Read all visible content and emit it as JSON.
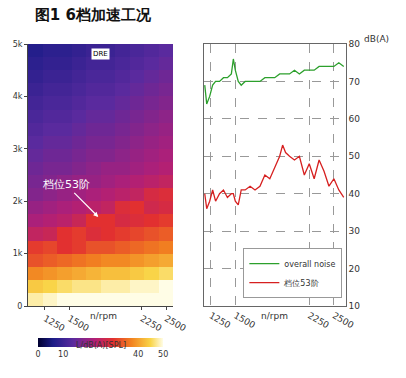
{
  "title": "图1 6档加速工况",
  "chart_data": [
    {
      "type": "heatmap",
      "x": [
        1150,
        1300,
        1450,
        1600,
        1750,
        1900,
        2050,
        2200,
        2350,
        2500
      ],
      "y": [
        125,
        375,
        625,
        875,
        1125,
        1375,
        1625,
        1875,
        2125,
        2375,
        2625,
        2875,
        3125,
        3375,
        3625,
        3875,
        4125,
        4375,
        4625,
        4875
      ],
      "z": [
        [
          48,
          49,
          50,
          50,
          50,
          50,
          50,
          50,
          50,
          50
        ],
        [
          44,
          45,
          46,
          47,
          47,
          48,
          48,
          49,
          49,
          50
        ],
        [
          38,
          39,
          40,
          41,
          42,
          43,
          43,
          44,
          45,
          46
        ],
        [
          33,
          34,
          35,
          36,
          37,
          38,
          38,
          39,
          40,
          41
        ],
        [
          31,
          32,
          30,
          31,
          33,
          33,
          34,
          35,
          36,
          37
        ],
        [
          25,
          26,
          30,
          31,
          29,
          30,
          31,
          32,
          33,
          34
        ],
        [
          22,
          23,
          24,
          26,
          30,
          30,
          28,
          29,
          30,
          31
        ],
        [
          20,
          21,
          22,
          23,
          24,
          25,
          29,
          30,
          27,
          28
        ],
        [
          18,
          19,
          20,
          21,
          22,
          23,
          24,
          25,
          28,
          29
        ],
        [
          17,
          18,
          19,
          20,
          20,
          21,
          22,
          23,
          24,
          25
        ],
        [
          16,
          17,
          17,
          18,
          19,
          20,
          20,
          21,
          22,
          23
        ],
        [
          15,
          16,
          16,
          17,
          18,
          18,
          19,
          20,
          21,
          22
        ],
        [
          14,
          15,
          15,
          16,
          17,
          17,
          18,
          19,
          20,
          21
        ],
        [
          13,
          14,
          14,
          15,
          16,
          16,
          17,
          18,
          19,
          20
        ],
        [
          12,
          13,
          13,
          14,
          15,
          15,
          16,
          17,
          18,
          19
        ],
        [
          11,
          12,
          12,
          13,
          14,
          14,
          15,
          16,
          17,
          18
        ],
        [
          10,
          11,
          11,
          12,
          13,
          13,
          14,
          15,
          16,
          17
        ],
        [
          9,
          10,
          10,
          11,
          12,
          12,
          13,
          14,
          15,
          16
        ],
        [
          8,
          9,
          9,
          10,
          11,
          11,
          12,
          13,
          14,
          15
        ],
        [
          7,
          8,
          8,
          9,
          10,
          10,
          11,
          12,
          13,
          14
        ]
      ],
      "xlim": [
        1075,
        2575
      ],
      "ylim": [
        0,
        5000
      ],
      "xticks": [
        1250,
        1500,
        2250,
        2500
      ],
      "yticks": [
        0,
        {
          "value": 1000,
          "label": "1k"
        },
        {
          "value": 2000,
          "label": "2k"
        },
        {
          "value": 3000,
          "label": "3k"
        },
        {
          "value": 4000,
          "label": "4k"
        },
        {
          "value": 5000,
          "label": "5k"
        }
      ],
      "xlabel": "n/rpm",
      "colorbar": {
        "range": [
          0,
          50
        ],
        "ticks": [
          0,
          10,
          40,
          50
        ],
        "title": "L/dB(A)[SPL]"
      },
      "annotations": [
        {
          "text": "DRE"
        },
        {
          "text": "档位53阶",
          "x": 1800,
          "y": 1700
        }
      ]
    },
    {
      "type": "line",
      "x": [
        1190,
        1210,
        1240,
        1270,
        1300,
        1340,
        1380,
        1420,
        1460,
        1480,
        1500,
        1530,
        1560,
        1600,
        1650,
        1700,
        1750,
        1800,
        1850,
        1900,
        1950,
        1980,
        2010,
        2050,
        2100,
        2150,
        2200,
        2250,
        2300,
        2350,
        2400,
        2450,
        2500,
        2550,
        2600
      ],
      "series": [
        {
          "name": "overall noise",
          "color": "#2ca02c",
          "values": [
            69,
            64,
            66,
            69,
            70,
            70,
            71,
            71,
            72,
            76,
            73,
            70,
            69,
            70,
            70,
            70,
            70,
            71,
            71,
            71,
            72,
            72,
            72,
            72,
            73,
            72,
            73,
            73,
            73,
            74,
            74,
            74,
            74,
            75,
            74
          ]
        },
        {
          "name": "档位53阶",
          "color": "#d62020",
          "values": [
            40,
            36,
            38,
            41,
            38,
            40,
            41,
            39,
            40,
            40,
            38,
            37,
            41,
            41,
            42,
            41,
            42,
            45,
            44,
            47,
            50,
            53,
            51,
            50,
            49,
            50,
            45,
            48,
            44,
            49,
            46,
            42,
            44,
            41,
            39
          ]
        }
      ],
      "xlim": [
        1180,
        2620
      ],
      "ylim": [
        10,
        80
      ],
      "xticks": [
        1250,
        1500,
        2250,
        2500
      ],
      "yticks": [
        10,
        20,
        30,
        40,
        50,
        60,
        70,
        80
      ],
      "xlabel": "n/rpm",
      "ylabel": "dB(A)",
      "grid": true,
      "legend": "lower right"
    }
  ]
}
